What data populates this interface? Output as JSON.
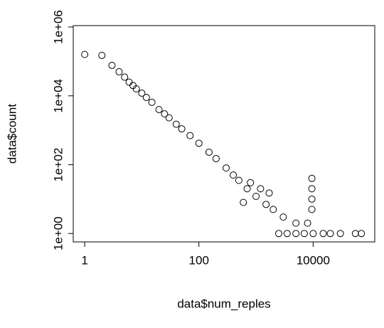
{
  "chart_data": {
    "type": "scatter",
    "x_label": "data$num_reples",
    "y_label": "data$count",
    "x_log": true,
    "y_log": true,
    "color": "#000000",
    "x": [
      1,
      2,
      3,
      4,
      5,
      6,
      7,
      8,
      10,
      12,
      15,
      20,
      25,
      30,
      40,
      50,
      70,
      100,
      150,
      200,
      300,
      400,
      500,
      700,
      1000,
      1500,
      2000,
      3000,
      5000,
      8000,
      9500,
      9500,
      9500,
      9500,
      2500,
      3500,
      5000,
      7000,
      10000,
      15000,
      20000,
      30000,
      55000,
      70000,
      800,
      1200,
      600,
      1700
    ],
    "values": [
      160000,
      150000,
      77000,
      50000,
      35000,
      25000,
      20000,
      16000,
      12000,
      9000,
      6500,
      4000,
      3000,
      2300,
      1500,
      1100,
      700,
      420,
      230,
      150,
      80,
      50,
      35,
      20,
      12,
      7,
      5,
      3,
      2,
      2,
      40,
      20,
      10,
      5,
      1,
      1,
      1,
      1,
      1,
      1,
      1,
      1,
      1,
      1,
      30,
      20,
      8,
      15
    ],
    "xlim": [
      0.63,
      120000
    ],
    "ylim": [
      0.57,
      1100000
    ],
    "xticks": [
      1,
      100,
      10000
    ],
    "yticks": [
      {
        "value": 1,
        "label": "1e+00"
      },
      {
        "value": 100,
        "label": "1e+02"
      },
      {
        "value": 10000,
        "label": "1e+04"
      },
      {
        "value": 1000000,
        "label": "1e+06"
      }
    ]
  }
}
